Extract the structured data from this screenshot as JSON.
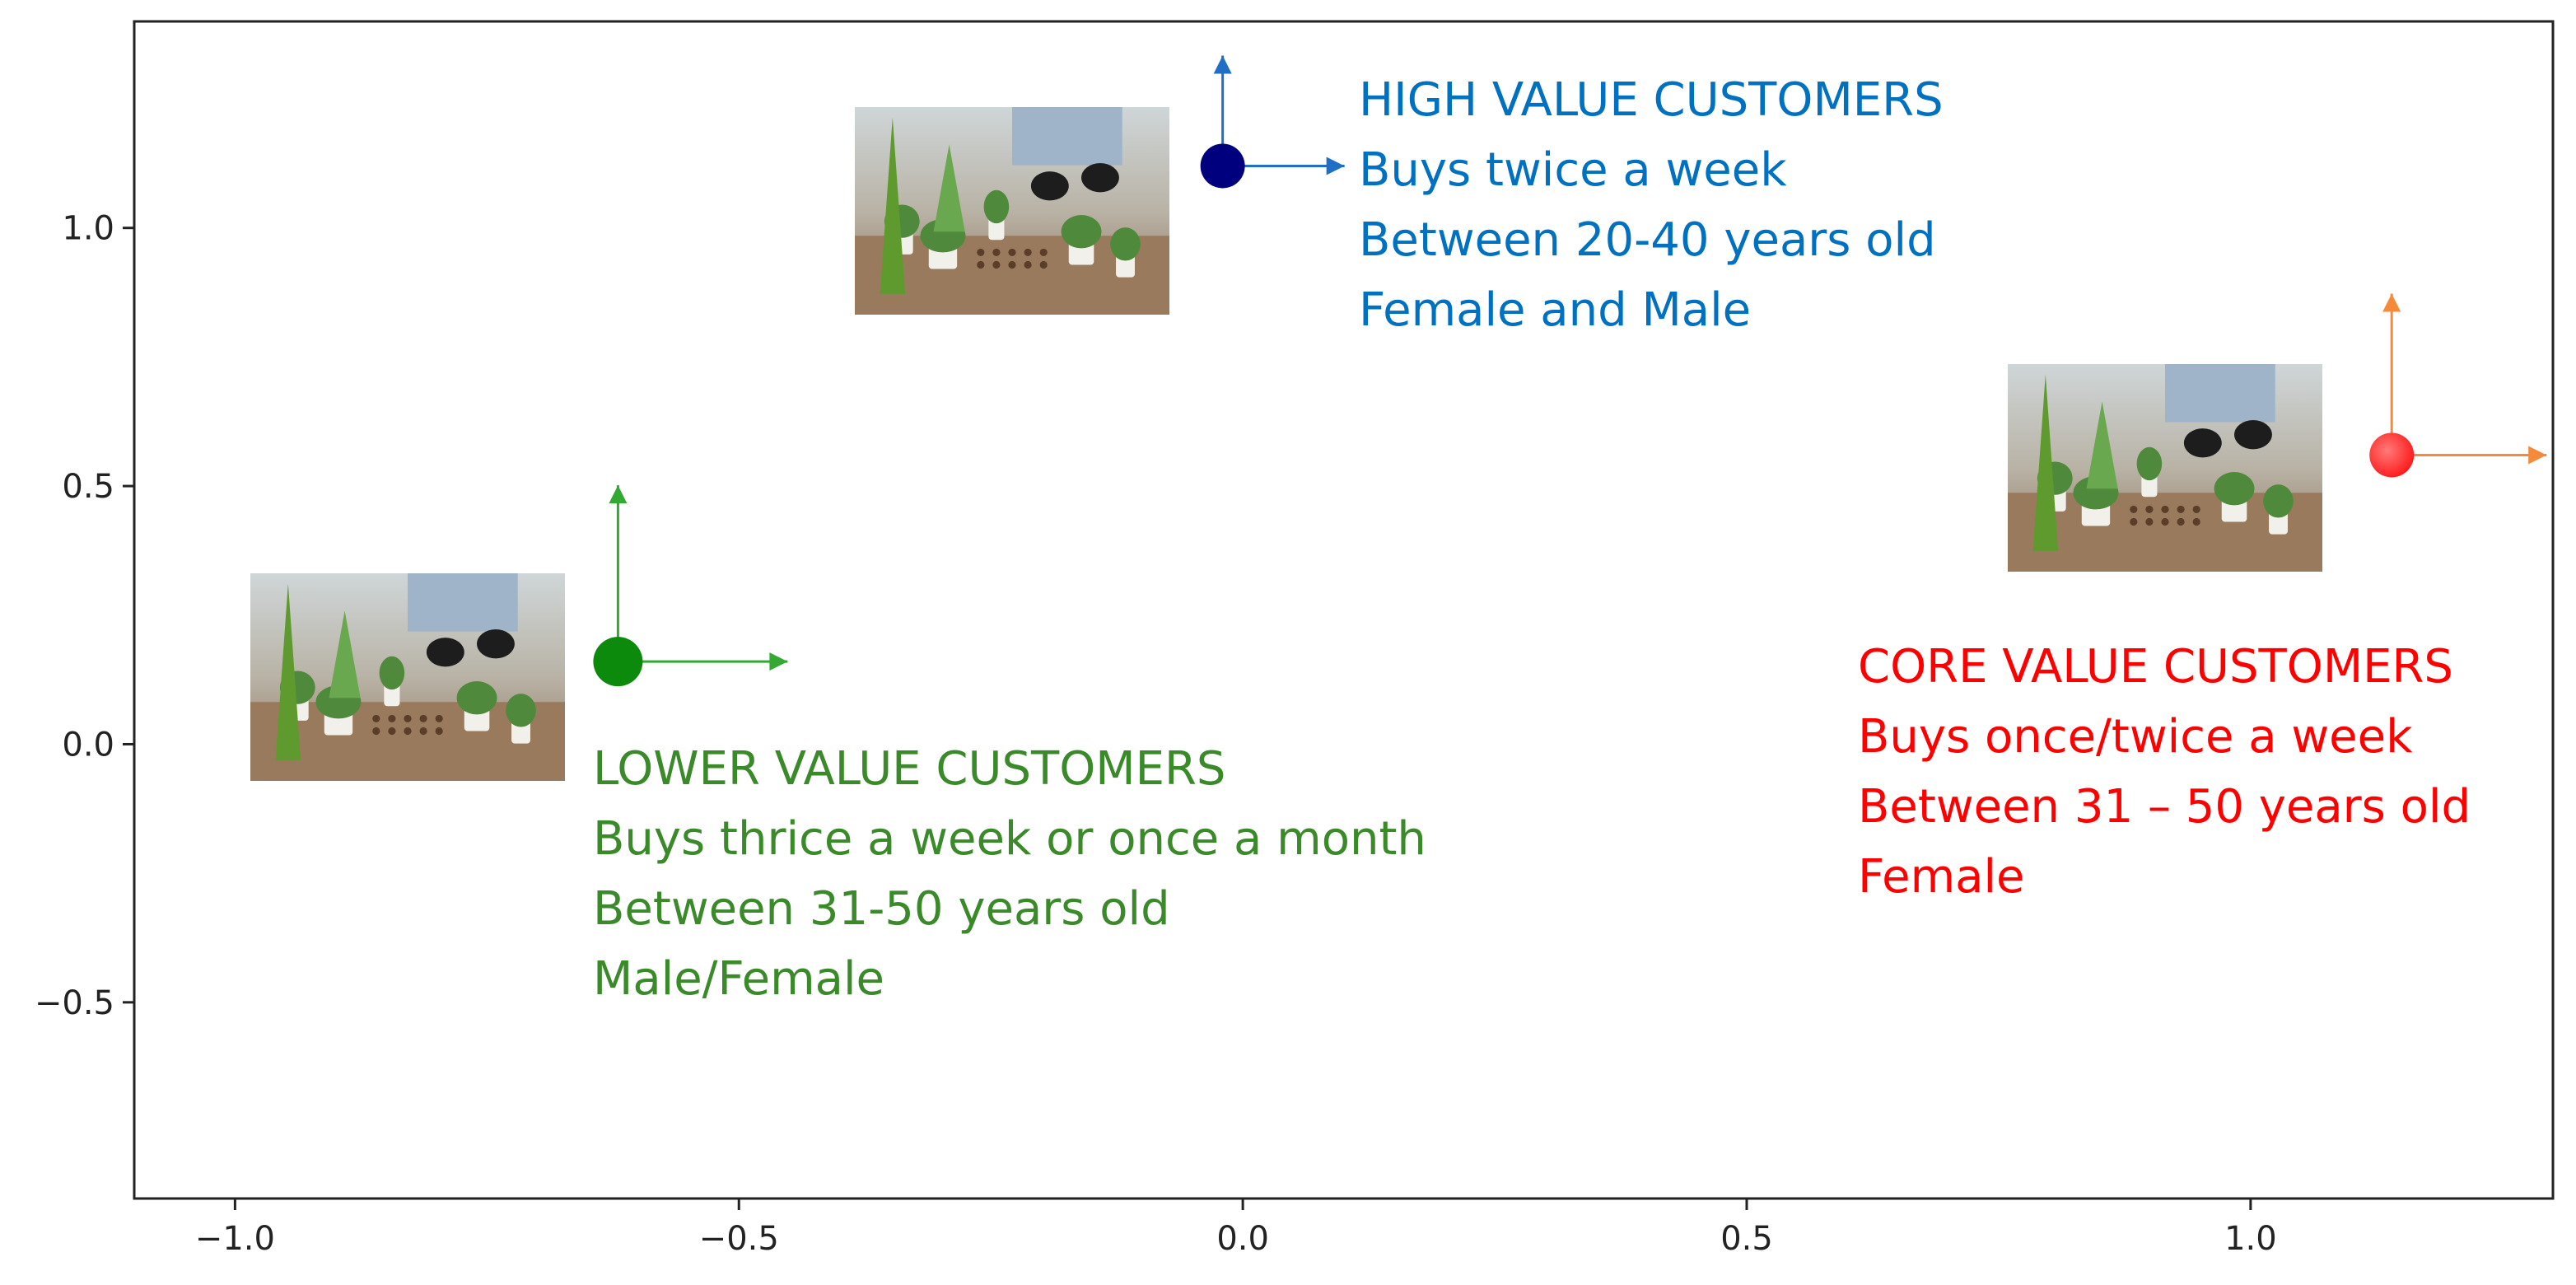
{
  "chart_data": {
    "type": "scatter",
    "title": "",
    "xlabel": "",
    "ylabel": "",
    "xlim": [
      -1.1,
      1.3
    ],
    "ylim": [
      -0.88,
      1.4
    ],
    "grid": false,
    "x_ticks": [
      {
        "value": -1.0,
        "label": "−1.0"
      },
      {
        "value": -0.5,
        "label": "−0.5"
      },
      {
        "value": 0.0,
        "label": "0.0"
      },
      {
        "value": 0.5,
        "label": "0.5"
      },
      {
        "value": 1.0,
        "label": "1.0"
      }
    ],
    "y_ticks": [
      {
        "value": -0.5,
        "label": "−0.5"
      },
      {
        "value": 0.0,
        "label": "0.0"
      },
      {
        "value": 0.5,
        "label": "0.5"
      },
      {
        "value": 1.0,
        "label": "1.0"
      }
    ],
    "points": [
      {
        "id": "high",
        "x": -0.02,
        "y": 1.12,
        "color": "#00007f",
        "arrow_color": "#1f6fc4",
        "text_color": "#0070c0",
        "lines": [
          "HIGH VALUE CUSTOMERS",
          "Buys twice a week",
          "Between 20-40 years old",
          "Female and Male"
        ]
      },
      {
        "id": "core",
        "x": 1.14,
        "y": 0.56,
        "color": "#ff2020",
        "arrow_color": "#f58b3a",
        "text_color": "#ff0000",
        "lines": [
          "CORE VALUE CUSTOMERS",
          "Buys once/twice a week",
          "Between 31 – 50 years old",
          "Female"
        ]
      },
      {
        "id": "lower",
        "x": -0.62,
        "y": 0.16,
        "color": "#0b8a0b",
        "arrow_color": "#33a833",
        "text_color": "#3a8a2a",
        "lines": [
          "LOWER VALUE CUSTOMERS",
          "Buys thrice a week or once a month",
          "Between 31-50 years old",
          "Male/Female"
        ]
      }
    ],
    "image_description_icon": "plant-workshop-photo"
  }
}
